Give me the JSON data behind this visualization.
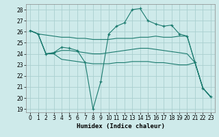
{
  "xlabel": "Humidex (Indice chaleur)",
  "bg_color": "#ceeaea",
  "grid_color": "#aacfcf",
  "line_color": "#1a7a6e",
  "xlim": [
    -0.5,
    23.5
  ],
  "ylim": [
    18.7,
    28.5
  ],
  "yticks": [
    19,
    20,
    21,
    22,
    23,
    24,
    25,
    26,
    27,
    28
  ],
  "xticks": [
    0,
    1,
    2,
    3,
    4,
    5,
    6,
    7,
    8,
    9,
    10,
    11,
    12,
    13,
    14,
    15,
    16,
    17,
    18,
    19,
    20,
    21,
    22,
    23
  ],
  "lines": [
    {
      "x": [
        0,
        1,
        2,
        3,
        4,
        5,
        6,
        7,
        8,
        9,
        10,
        11,
        12,
        13,
        14,
        15,
        16,
        17,
        18,
        19,
        20,
        21,
        22,
        23
      ],
      "y": [
        26.1,
        25.8,
        24.0,
        24.1,
        24.6,
        24.5,
        24.3,
        23.2,
        19.0,
        21.5,
        25.8,
        26.5,
        26.8,
        28.0,
        28.1,
        27.0,
        26.7,
        26.5,
        26.6,
        25.8,
        25.6,
        23.2,
        20.9,
        20.1
      ],
      "marker": true
    },
    {
      "x": [
        0,
        1,
        2,
        3,
        4,
        5,
        6,
        7,
        8,
        9,
        10,
        11,
        12,
        13,
        14,
        15,
        16,
        17,
        18,
        19,
        20,
        21,
        22,
        23
      ],
      "y": [
        26.1,
        25.8,
        25.7,
        25.6,
        25.5,
        25.5,
        25.4,
        25.4,
        25.3,
        25.3,
        25.3,
        25.4,
        25.4,
        25.4,
        25.5,
        25.5,
        25.6,
        25.5,
        25.5,
        25.6,
        25.6,
        23.2,
        20.9,
        20.1
      ],
      "marker": false
    },
    {
      "x": [
        0,
        1,
        2,
        3,
        4,
        5,
        6,
        7,
        8,
        9,
        10,
        11,
        12,
        13,
        14,
        15,
        16,
        17,
        18,
        19,
        20,
        21,
        22,
        23
      ],
      "y": [
        26.1,
        25.8,
        24.0,
        24.1,
        24.3,
        24.3,
        24.2,
        24.1,
        24.0,
        24.0,
        24.1,
        24.2,
        24.3,
        24.4,
        24.5,
        24.5,
        24.4,
        24.3,
        24.2,
        24.1,
        24.0,
        23.2,
        20.9,
        20.1
      ],
      "marker": false
    },
    {
      "x": [
        0,
        1,
        2,
        3,
        4,
        5,
        6,
        7,
        8,
        9,
        10,
        11,
        12,
        13,
        14,
        15,
        16,
        17,
        18,
        19,
        20,
        21,
        22,
        23
      ],
      "y": [
        26.1,
        25.8,
        24.0,
        24.0,
        23.5,
        23.4,
        23.3,
        23.2,
        23.1,
        23.1,
        23.1,
        23.2,
        23.2,
        23.3,
        23.3,
        23.3,
        23.2,
        23.2,
        23.1,
        23.0,
        23.0,
        23.2,
        20.9,
        20.1
      ],
      "marker": false
    }
  ]
}
